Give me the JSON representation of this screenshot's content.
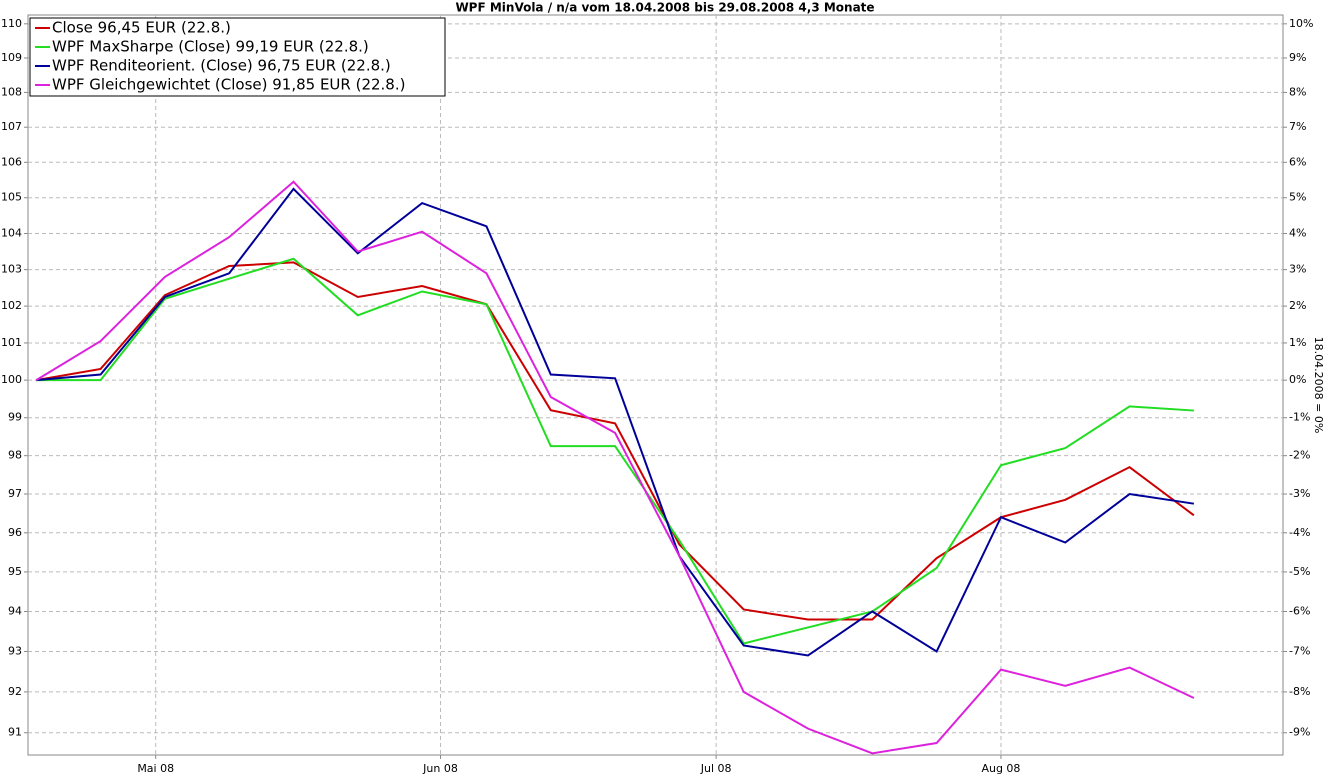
{
  "chart_data": {
    "type": "line",
    "title": "WPF MinVola / n/a vom 18.04.2008 bis 29.08.2008 4,3 Monate",
    "y2_label": "18.04.2008 = 0%",
    "x": [
      0,
      7,
      14,
      21,
      28,
      35,
      42,
      49,
      56,
      63,
      70,
      77,
      84,
      91,
      98,
      105,
      112,
      119,
      126
    ],
    "xlim": [
      -0.9,
      135.7
    ],
    "xticks": [
      {
        "value": 13,
        "label": "Mai 08"
      },
      {
        "value": 44,
        "label": "Jun 08"
      },
      {
        "value": 74,
        "label": "Jul 08"
      },
      {
        "value": 105,
        "label": "Aug 08"
      }
    ],
    "log_scale": true,
    "grid": true,
    "legend": "top-left",
    "ylim": [
      90.46,
      110.26
    ],
    "yticks": [
      91,
      92,
      93,
      94,
      95,
      96,
      97,
      98,
      99,
      100,
      101,
      102,
      103,
      104,
      105,
      106,
      107,
      108,
      109,
      110
    ],
    "y2lim": [
      -9.54,
      10.26
    ],
    "y2ticks": [
      {
        "value": -9,
        "label": "-9%"
      },
      {
        "value": -8,
        "label": "-8%"
      },
      {
        "value": -7,
        "label": "-7%"
      },
      {
        "value": -6,
        "label": "-6%"
      },
      {
        "value": -5,
        "label": "-5%"
      },
      {
        "value": -4,
        "label": "-4%"
      },
      {
        "value": -3,
        "label": "-3%"
      },
      {
        "value": -2,
        "label": "-2%"
      },
      {
        "value": -1,
        "label": "-1%"
      },
      {
        "value": 0,
        "label": "0%"
      },
      {
        "value": 1,
        "label": "1%"
      },
      {
        "value": 2,
        "label": "2%"
      },
      {
        "value": 3,
        "label": "3%"
      },
      {
        "value": 4,
        "label": "4%"
      },
      {
        "value": 5,
        "label": "5%"
      },
      {
        "value": 6,
        "label": "6%"
      },
      {
        "value": 7,
        "label": "7%"
      },
      {
        "value": 8,
        "label": "8%"
      },
      {
        "value": 9,
        "label": "9%"
      },
      {
        "value": 10,
        "label": "10%"
      }
    ],
    "series": [
      {
        "name": "Close 96,45 EUR (22.8.)",
        "color": "#cc0000",
        "values": [
          100,
          100.3,
          102.3,
          103.1,
          103.2,
          102.25,
          102.55,
          102.05,
          99.2,
          98.85,
          95.7,
          94.05,
          93.8,
          93.8,
          95.35,
          96.4,
          96.85,
          97.7,
          96.45
        ]
      },
      {
        "name": "WPF MaxSharpe (Close) 99,19 EUR (22.8.)",
        "color": "#22dd22",
        "values": [
          100,
          100,
          102.2,
          102.75,
          103.3,
          101.75,
          102.4,
          102.05,
          98.25,
          98.25,
          95.8,
          93.2,
          93.6,
          94.0,
          95.1,
          97.75,
          98.2,
          99.3,
          99.19
        ]
      },
      {
        "name": "WPF Renditeorient. (Close) 96,75 EUR (22.8.)",
        "color": "#000099",
        "values": [
          100,
          100.15,
          102.25,
          102.9,
          105.25,
          103.45,
          104.85,
          104.2,
          100.15,
          100.05,
          95.4,
          93.15,
          92.9,
          94.0,
          93.0,
          96.4,
          95.75,
          97.0,
          96.75
        ]
      },
      {
        "name": "WPF Gleichgewichtet (Close) 91,85 EUR (22.8.)",
        "color": "#dd22dd",
        "values": [
          100,
          101.05,
          102.8,
          103.9,
          105.45,
          103.5,
          104.05,
          102.9,
          99.55,
          98.6,
          95.4,
          92.0,
          91.1,
          90.5,
          90.75,
          92.55,
          92.15,
          92.6,
          91.85
        ]
      }
    ]
  }
}
